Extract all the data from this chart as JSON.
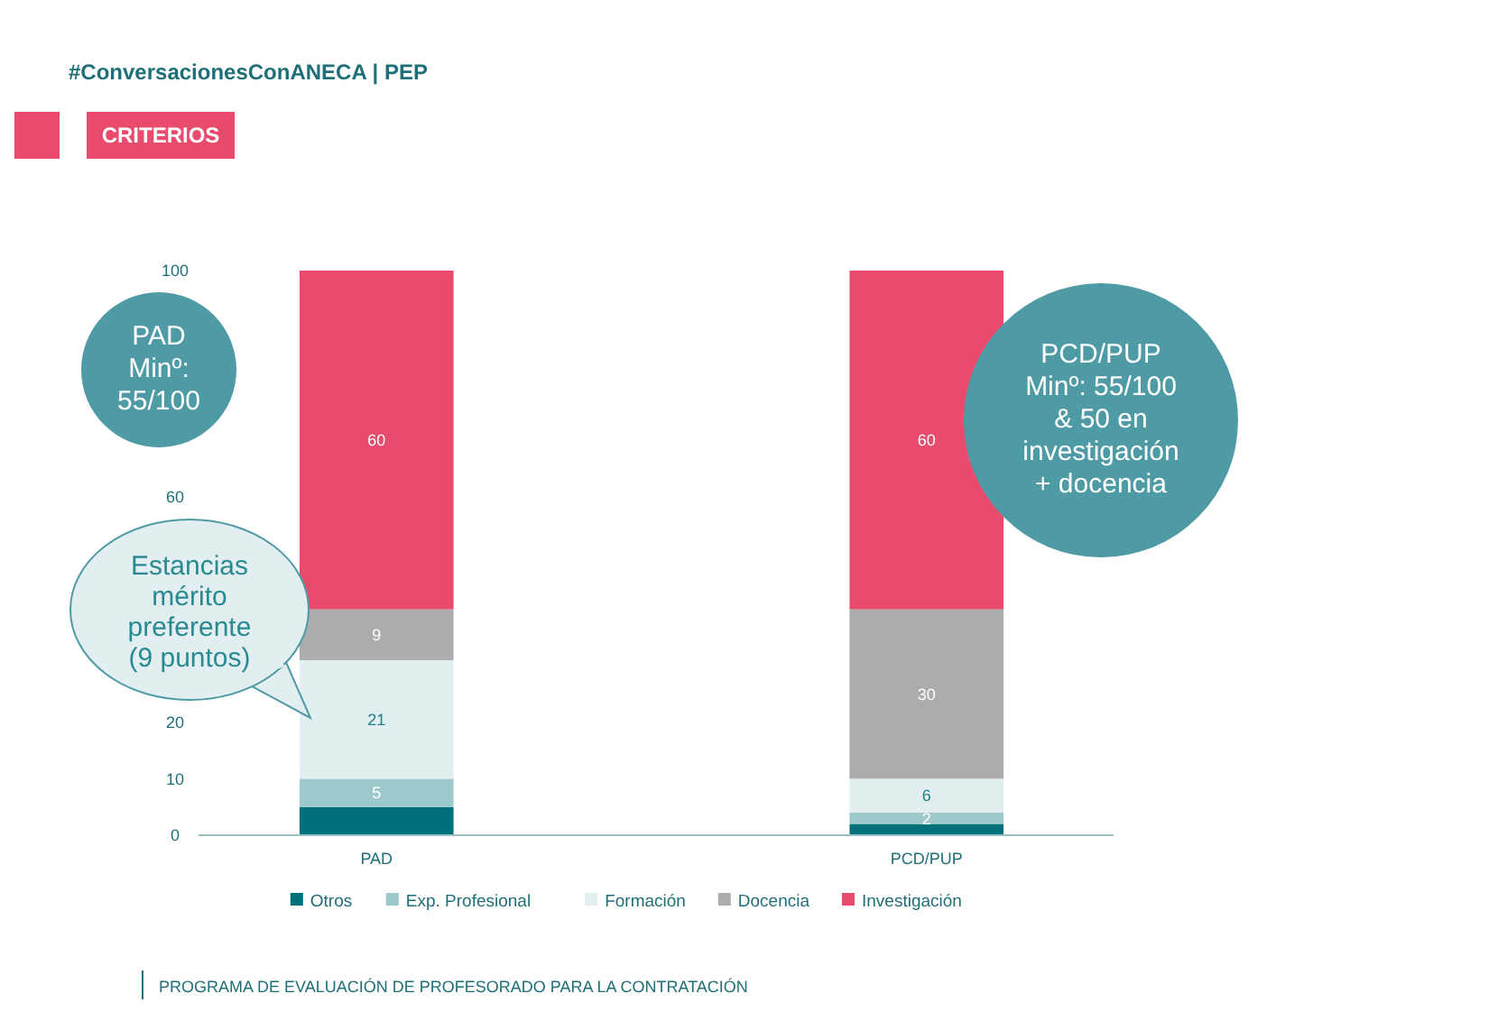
{
  "chart_data": {
    "type": "bar",
    "title": "#ConversacionesConANECA | PEP",
    "subtitle": "CRITERIOS",
    "categories": [
      "PAD",
      "PCD/PUP"
    ],
    "stacked": true,
    "ylim": [
      0,
      100
    ],
    "yticks": [
      0,
      10,
      20,
      60,
      100
    ],
    "grid": false,
    "legend": "bottom",
    "series": [
      {
        "name": "Otros",
        "color": "#00717b",
        "values": [
          5,
          2
        ],
        "value_labels": [
          null,
          null
        ]
      },
      {
        "name": "Exp. Profesional",
        "color": "#9dc9cd",
        "values": [
          5,
          2
        ],
        "value_labels": [
          "5",
          "2"
        ]
      },
      {
        "name": "Formación",
        "color": "#e3eef0",
        "values": [
          21,
          6
        ],
        "value_labels": [
          "21",
          "6"
        ]
      },
      {
        "name": "Docencia",
        "color": "#acacae",
        "values": [
          9,
          30
        ],
        "value_labels": [
          "9",
          "30"
        ]
      },
      {
        "name": "Investigación",
        "color": "#e94b6d",
        "values": [
          60,
          60
        ],
        "value_labels": [
          "60",
          "60"
        ]
      }
    ],
    "annotations": [
      "PAD\nMinº:\n55/100",
      "PCD/PUP\nMinº: 55/100\n& 50 en\ninvestigación\n+ docencia",
      "Estancias\nmérito\npreferente\n(9 puntos)",
      "PROGRAMA DE EVALUACIÓN DE PROFESORADO PARA LA CONTRATACIÓN"
    ]
  }
}
